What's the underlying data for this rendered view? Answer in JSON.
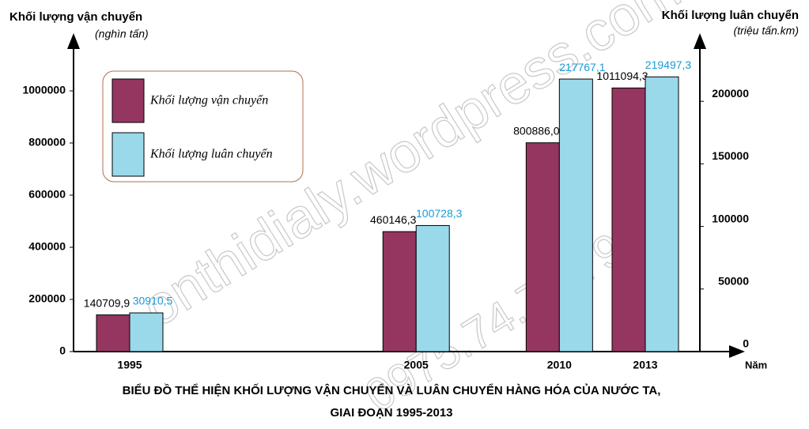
{
  "chart_data": {
    "type": "bar",
    "title": "BIỂU ĐỒ THỂ HIỆN KHỐI LƯỢNG VẬN CHUYỂN VÀ LUÂN CHUYỂN HÀNG HÓA CỦA NƯỚC TA,",
    "subtitle": "GIAI ĐOẠN 1995-2013",
    "y_label": "Khối lượng vận chuyển",
    "y_unit": "(nghìn tấn)",
    "y2_label": "Khối lượng luân chuyển",
    "y2_unit": "(triệu tấn.km)",
    "x_label": "Năm",
    "x": [
      1995,
      2005,
      2010,
      2013
    ],
    "series": [
      {
        "name": "Khối lượng vận chuyển",
        "color": "#943660",
        "values": [
          140709.9,
          460146.3,
          800886.0,
          1011094.3
        ],
        "value_labels": [
          "140709,9",
          "460146,3",
          "800886,0",
          "1011094,3"
        ],
        "label_color": "#000000"
      },
      {
        "name": "Khối lượng luân chuyển",
        "color": "#9ad9ea",
        "axis": "y2",
        "values": [
          30910.5,
          100728.3,
          217767.1,
          219497.3
        ],
        "value_labels": [
          "30910,5",
          "100728,3",
          "217767,1",
          "219497,3"
        ],
        "label_color": "#1a9bd7"
      }
    ],
    "ylim": [
      0,
      1200000
    ],
    "yticks": [
      0,
      200000,
      400000,
      600000,
      800000,
      1000000
    ],
    "y2lim": [
      0,
      250000
    ],
    "y2ticks": [
      0,
      50000,
      100000,
      150000,
      200000
    ],
    "watermarks": [
      "onthidialy.wordpress.com",
      "0975.74.75.79"
    ]
  }
}
